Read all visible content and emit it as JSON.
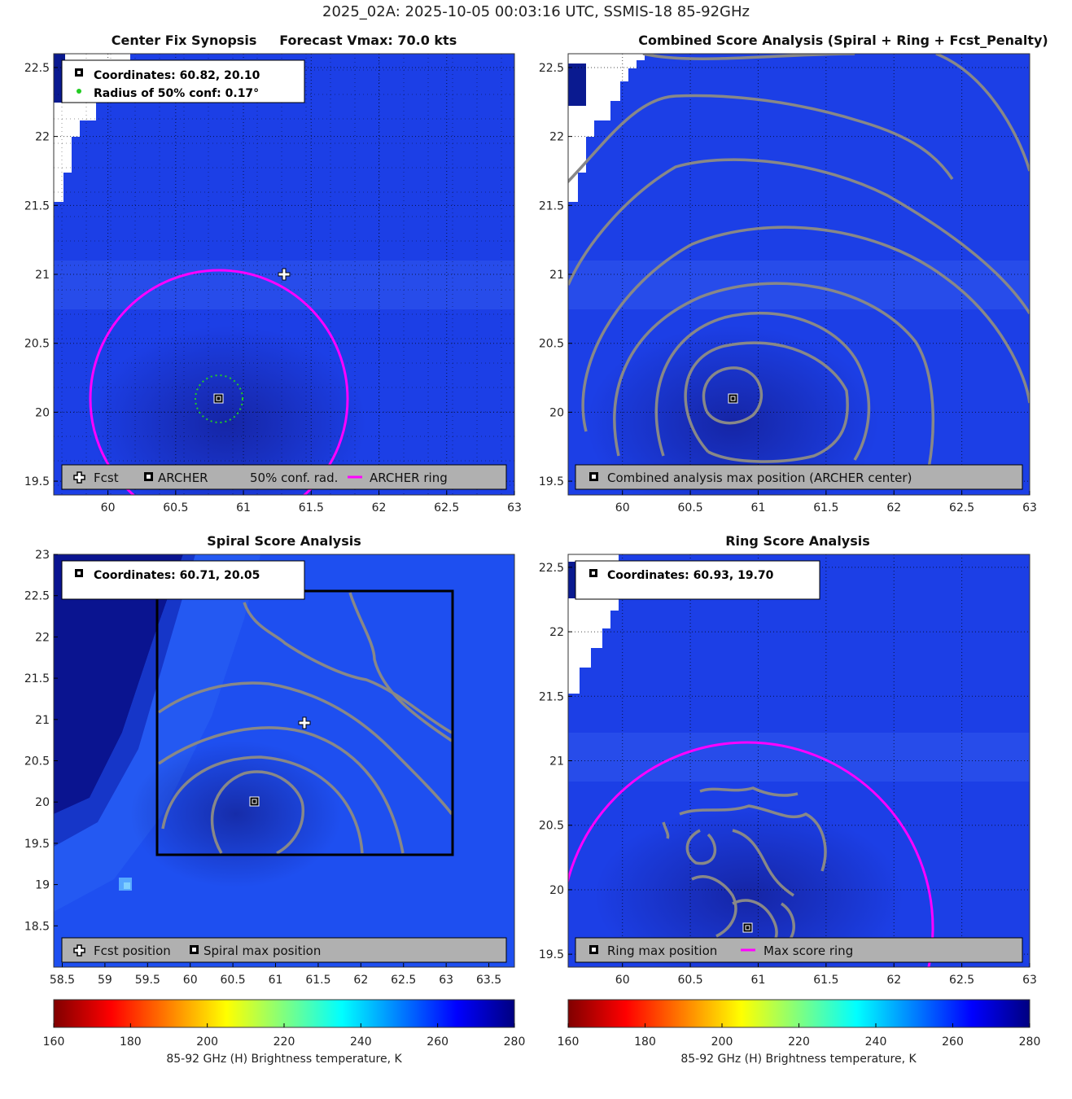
{
  "figure": {
    "suptitle": "2025_02A: 2025-10-05 00:03:16 UTC, SSMIS-18 85-92GHz",
    "colors": {
      "contour": "#888888",
      "ring": "#ff00ff",
      "conf": "#22cc22",
      "legend_bg": "#b0b0b0"
    }
  },
  "chart_data": [
    {
      "type": "heatmap",
      "panel": "synopsis",
      "title": "Center Fix Synopsis     Forecast Vmax: 70.0 kts",
      "xlim": [
        59.6,
        63.0
      ],
      "ylim": [
        19.4,
        22.6
      ],
      "xticks": [
        "60",
        "60.5",
        "61",
        "61.5",
        "62",
        "62.5",
        "63"
      ],
      "yticks": [
        "19.5",
        "20",
        "20.5",
        "21",
        "21.5",
        "22",
        "22.5"
      ],
      "grid": true,
      "info_box": [
        "Coordinates: 60.82, 20.10",
        "Radius of 50% conf: 0.17°"
      ],
      "fcst_position": [
        61.3,
        21.0
      ],
      "archer_center": [
        60.82,
        20.1
      ],
      "conf_radius_deg": 0.17,
      "archer_ring_radius_deg": 0.95,
      "legend": [
        "Fcst",
        "ARCHER",
        "50% conf. rad.",
        "ARCHER ring"
      ]
    },
    {
      "type": "heatmap",
      "panel": "combined",
      "title": "Combined Score Analysis (Spiral + Ring + Fcst_Penalty)",
      "xlim": [
        59.6,
        63.0
      ],
      "ylim": [
        19.4,
        22.6
      ],
      "xticks": [
        "60",
        "60.5",
        "61",
        "61.5",
        "62",
        "62.5",
        "63"
      ],
      "yticks": [
        "19.5",
        "20",
        "20.5",
        "21",
        "21.5",
        "22",
        "22.5"
      ],
      "grid": true,
      "max_position": [
        60.82,
        20.1
      ],
      "legend": [
        "Combined analysis max position (ARCHER center)"
      ]
    },
    {
      "type": "heatmap",
      "panel": "spiral",
      "title": "Spiral Score Analysis",
      "xlim": [
        58.4,
        63.8
      ],
      "ylim": [
        18.0,
        23.0
      ],
      "xticks": [
        "58.5",
        "59",
        "59.5",
        "60",
        "60.5",
        "61",
        "61.5",
        "62",
        "62.5",
        "63",
        "63.5"
      ],
      "yticks": [
        "18.5",
        "19",
        "19.5",
        "20",
        "20.5",
        "21",
        "21.5",
        "22",
        "22.5",
        "23"
      ],
      "grid": false,
      "info_box": [
        "Coordinates: 60.71, 20.05"
      ],
      "fcst_position": [
        61.3,
        21.0
      ],
      "max_position": [
        60.71,
        20.05
      ],
      "search_box": [
        59.6,
        19.4,
        63.0,
        22.6
      ],
      "legend": [
        "Fcst position",
        "Spiral max position"
      ]
    },
    {
      "type": "heatmap",
      "panel": "ring",
      "title": "Ring Score Analysis",
      "xlim": [
        59.6,
        63.0
      ],
      "ylim": [
        19.4,
        22.6
      ],
      "xticks": [
        "60",
        "60.5",
        "61",
        "61.5",
        "62",
        "62.5",
        "63"
      ],
      "yticks": [
        "19.5",
        "20",
        "20.5",
        "21",
        "21.5",
        "22",
        "22.5"
      ],
      "grid": true,
      "info_box": [
        "Coordinates: 60.93, 19.70"
      ],
      "max_position": [
        60.93,
        19.7
      ],
      "ring_radius_deg": 1.3,
      "legend": [
        "Ring max position",
        "Max score ring"
      ]
    }
  ],
  "colorbars": [
    {
      "label": "85-92 GHz (H) Brightness temperature, K",
      "ticks": [
        "160",
        "180",
        "200",
        "220",
        "240",
        "260",
        "280"
      ],
      "range": [
        160,
        280
      ]
    },
    {
      "label": "85-92 GHz (H) Brightness temperature, K",
      "ticks": [
        "160",
        "180",
        "200",
        "220",
        "240",
        "260",
        "280"
      ],
      "range": [
        160,
        280
      ]
    }
  ]
}
